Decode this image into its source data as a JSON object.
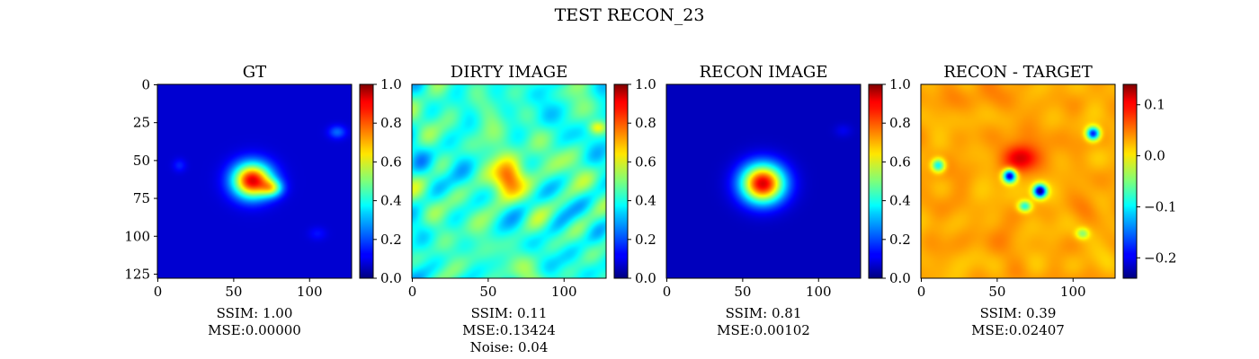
{
  "suptitle": "TEST RECON_23",
  "chart_data": [
    {
      "type": "heatmap",
      "title": "GT",
      "image_size": [
        128,
        128
      ],
      "colormap": "jet",
      "xticks": [
        "0",
        "50",
        "100"
      ],
      "yticks": [
        "0",
        "25",
        "50",
        "75",
        "100",
        "125"
      ],
      "colorbar": {
        "range": [
          0.0,
          1.0
        ],
        "ticks": [
          "0.0",
          "0.2",
          "0.4",
          "0.6",
          "0.8",
          "1.0"
        ]
      },
      "caption": [
        "SSIM: 1.00",
        "MSE:0.00000"
      ]
    },
    {
      "type": "heatmap",
      "title": "DIRTY IMAGE",
      "image_size": [
        128,
        128
      ],
      "colormap": "jet",
      "xticks": [
        "0",
        "50",
        "100"
      ],
      "colorbar": {
        "range": [
          0.0,
          1.0
        ],
        "ticks": [
          "0.0",
          "0.2",
          "0.4",
          "0.6",
          "0.8",
          "1.0"
        ]
      },
      "caption": [
        "SSIM: 0.11",
        "MSE:0.13424",
        "Noise: 0.04"
      ]
    },
    {
      "type": "heatmap",
      "title": "RECON IMAGE",
      "image_size": [
        128,
        128
      ],
      "colormap": "jet",
      "xticks": [
        "0",
        "50",
        "100"
      ],
      "colorbar": {
        "range": [
          0.0,
          1.0
        ],
        "ticks": [
          "0.0",
          "0.2",
          "0.4",
          "0.6",
          "0.8",
          "1.0"
        ]
      },
      "caption": [
        "SSIM: 0.81",
        "MSE:0.00102"
      ]
    },
    {
      "type": "heatmap",
      "title": "RECON - TARGET",
      "image_size": [
        128,
        128
      ],
      "colormap": "jet",
      "xticks": [
        "0",
        "50",
        "100"
      ],
      "colorbar": {
        "range": [
          -0.24,
          0.14
        ],
        "ticks": [
          "−0.2",
          "−0.1",
          "0.0",
          "0.1"
        ]
      },
      "caption": [
        "SSIM: 0.39",
        "MSE:0.02407"
      ]
    }
  ]
}
